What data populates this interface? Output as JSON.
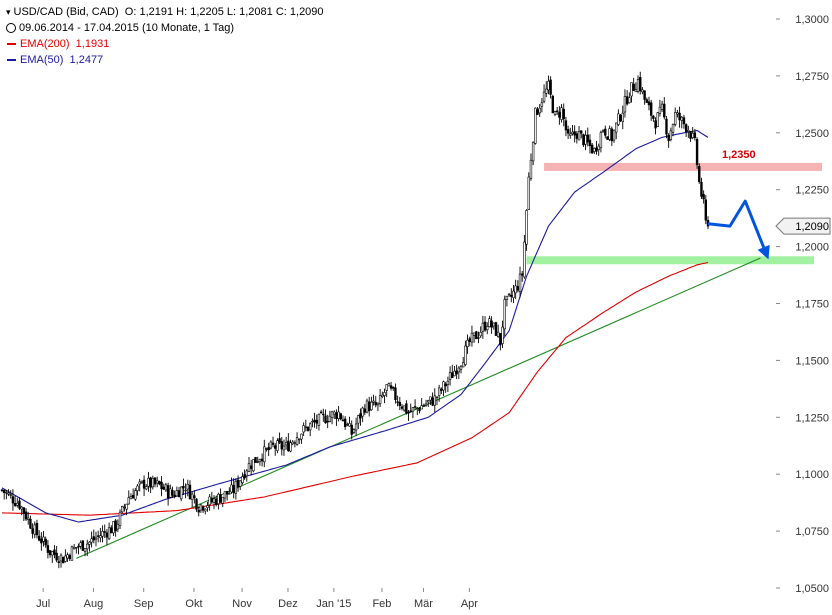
{
  "header": {
    "symbol": "USD/CAD (Bid, CAD)",
    "ohlc": "O: 1,2191  H: 1,2205  L: 1,2081  C: 1,2090",
    "period": "09.06.2014 - 17.04.2015 (10 Monate, 1 Tag)",
    "ema200_label": "EMA(200)",
    "ema200_value": "1,1931",
    "ema50_label": "EMA(50)",
    "ema50_value": "1,2477"
  },
  "colors": {
    "candle": "#000000",
    "ema200": "#e00000",
    "ema50": "#1a1aa0",
    "trendline": "#228b22",
    "resistance": "#f4a0a0",
    "support": "#90ee90",
    "projection": "#0055dd",
    "resistance_label": "#d40000"
  },
  "chart_data": {
    "type": "candlestick",
    "x_tick_labels": [
      "Jul",
      "Aug",
      "Sep",
      "Okt",
      "Nov",
      "Dez",
      "Jan '15",
      "Feb",
      "Mär",
      "Apr"
    ],
    "y_ticks": [
      1.05,
      1.075,
      1.1,
      1.125,
      1.15,
      1.175,
      1.2,
      1.225,
      1.25,
      1.275,
      1.3
    ],
    "y_tick_labels": [
      "1,0500",
      "1,0750",
      "1,1000",
      "1,1250",
      "1,1500",
      "1,1750",
      "1,2000",
      "1,2250",
      "1,2500",
      "1,2750",
      "1,3000"
    ],
    "ylim": [
      1.05,
      1.3
    ],
    "last_price_label": "1,2090",
    "last_price": 1.209,
    "resistance": {
      "value": 1.235,
      "label": "1,2350"
    },
    "support": {
      "value": 1.194
    },
    "close_anchors": [
      [
        0,
        1.093
      ],
      [
        8,
        1.087
      ],
      [
        15,
        1.075
      ],
      [
        22,
        1.066
      ],
      [
        28,
        1.063
      ],
      [
        34,
        1.068
      ],
      [
        40,
        1.07
      ],
      [
        46,
        1.074
      ],
      [
        52,
        1.077
      ],
      [
        58,
        1.09
      ],
      [
        65,
        1.096
      ],
      [
        72,
        1.095
      ],
      [
        78,
        1.091
      ],
      [
        84,
        1.095
      ],
      [
        90,
        1.086
      ],
      [
        96,
        1.088
      ],
      [
        100,
        1.09
      ],
      [
        106,
        1.093
      ],
      [
        112,
        1.103
      ],
      [
        118,
        1.108
      ],
      [
        124,
        1.112
      ],
      [
        130,
        1.112
      ],
      [
        136,
        1.118
      ],
      [
        142,
        1.122
      ],
      [
        148,
        1.125
      ],
      [
        154,
        1.127
      ],
      [
        160,
        1.118
      ],
      [
        166,
        1.13
      ],
      [
        172,
        1.13
      ],
      [
        176,
        1.138
      ],
      [
        180,
        1.134
      ],
      [
        186,
        1.127
      ],
      [
        192,
        1.13
      ],
      [
        198,
        1.133
      ],
      [
        204,
        1.141
      ],
      [
        210,
        1.15
      ],
      [
        214,
        1.158
      ],
      [
        218,
        1.162
      ],
      [
        222,
        1.167
      ],
      [
        226,
        1.163
      ],
      [
        228,
        1.158
      ],
      [
        230,
        1.174
      ],
      [
        233,
        1.178
      ],
      [
        236,
        1.183
      ],
      [
        238,
        1.188
      ],
      [
        241,
        1.23
      ],
      [
        244,
        1.258
      ],
      [
        247,
        1.265
      ],
      [
        250,
        1.27
      ],
      [
        253,
        1.257
      ],
      [
        256,
        1.26
      ],
      [
        259,
        1.247
      ],
      [
        263,
        1.25
      ],
      [
        267,
        1.246
      ],
      [
        271,
        1.242
      ],
      [
        275,
        1.252
      ],
      [
        279,
        1.248
      ],
      [
        283,
        1.258
      ],
      [
        287,
        1.268
      ],
      [
        291,
        1.273
      ],
      [
        295,
        1.262
      ],
      [
        299,
        1.255
      ],
      [
        302,
        1.26
      ],
      [
        305,
        1.248
      ],
      [
        308,
        1.258
      ],
      [
        311,
        1.255
      ],
      [
        314,
        1.252
      ],
      [
        317,
        1.245
      ],
      [
        319,
        1.228
      ],
      [
        321,
        1.218
      ],
      [
        322,
        1.21
      ],
      [
        323,
        1.209
      ]
    ],
    "ema50_anchors": [
      [
        0,
        1.094
      ],
      [
        20,
        1.083
      ],
      [
        35,
        1.079
      ],
      [
        55,
        1.082
      ],
      [
        75,
        1.089
      ],
      [
        100,
        1.096
      ],
      [
        130,
        1.104
      ],
      [
        150,
        1.112
      ],
      [
        175,
        1.119
      ],
      [
        195,
        1.125
      ],
      [
        210,
        1.135
      ],
      [
        222,
        1.15
      ],
      [
        232,
        1.163
      ],
      [
        240,
        1.187
      ],
      [
        250,
        1.209
      ],
      [
        262,
        1.224
      ],
      [
        277,
        1.234
      ],
      [
        290,
        1.243
      ],
      [
        302,
        1.248
      ],
      [
        312,
        1.25
      ],
      [
        318,
        1.251
      ],
      [
        323,
        1.248
      ]
    ],
    "ema200_anchors": [
      [
        0,
        1.083
      ],
      [
        40,
        1.082
      ],
      [
        80,
        1.084
      ],
      [
        120,
        1.09
      ],
      [
        160,
        1.099
      ],
      [
        190,
        1.105
      ],
      [
        215,
        1.116
      ],
      [
        232,
        1.127
      ],
      [
        245,
        1.145
      ],
      [
        258,
        1.16
      ],
      [
        275,
        1.171
      ],
      [
        290,
        1.18
      ],
      [
        305,
        1.187
      ],
      [
        318,
        1.192
      ],
      [
        323,
        1.193
      ]
    ],
    "trendline": {
      "from": [
        34,
        1.063
      ],
      "to": [
        347,
        1.195
      ]
    },
    "projection_path": [
      [
        323,
        1.21
      ],
      [
        333,
        1.209
      ],
      [
        340,
        1.22
      ],
      [
        350,
        1.196
      ]
    ]
  }
}
